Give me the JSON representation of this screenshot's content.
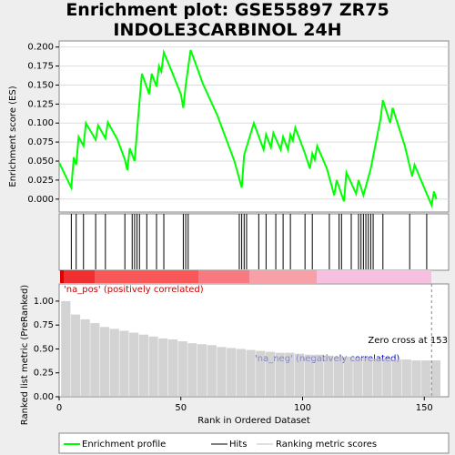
{
  "chart_data": [
    {
      "type": "line",
      "title": "Enrichment plot: GSE55897 ZR75 INDOLE3CARBINOL 24H",
      "ylabel": "Enrichment score (ES)",
      "xlim": [
        0,
        160
      ],
      "ylim": [
        -0.017,
        0.208
      ],
      "yticks": [
        {
          "value": 0,
          "label": "0.000"
        },
        {
          "value": 0.025,
          "label": "0.025"
        },
        {
          "value": 0.05,
          "label": "0.050"
        },
        {
          "value": 0.075,
          "label": "0.075"
        },
        {
          "value": 0.1,
          "label": "0.100"
        },
        {
          "value": 0.125,
          "label": "0.125"
        },
        {
          "value": 0.15,
          "label": "0.150"
        },
        {
          "value": 0.175,
          "label": "0.175"
        },
        {
          "value": 0.2,
          "label": "0.200"
        }
      ],
      "grid": true,
      "series": [
        {
          "name": "Enrichment profile",
          "color": "#00ff00",
          "x": [
            0,
            5,
            6,
            7,
            8,
            10,
            11,
            15,
            16,
            19,
            20,
            24,
            27,
            28,
            29,
            31,
            32,
            34,
            37,
            38,
            40,
            41,
            42,
            43,
            46,
            50,
            51,
            52,
            54,
            57,
            59,
            65,
            72,
            75,
            76,
            80,
            84,
            85,
            87,
            88,
            91,
            92,
            94,
            95,
            96,
            97,
            101,
            103,
            104,
            105,
            106,
            110,
            113,
            114,
            117,
            118,
            122,
            123,
            125,
            128,
            132,
            133,
            136,
            137,
            142,
            145,
            146,
            153,
            154,
            155
          ],
          "values": [
            0.048,
            0.015,
            0.055,
            0.045,
            0.082,
            0.07,
            0.1,
            0.078,
            0.097,
            0.08,
            0.101,
            0.078,
            0.052,
            0.038,
            0.067,
            0.05,
            0.09,
            0.165,
            0.138,
            0.165,
            0.148,
            0.175,
            0.168,
            0.193,
            0.17,
            0.138,
            0.12,
            0.15,
            0.196,
            0.17,
            0.152,
            0.11,
            0.05,
            0.015,
            0.058,
            0.1,
            0.065,
            0.085,
            0.068,
            0.087,
            0.065,
            0.082,
            0.065,
            0.085,
            0.077,
            0.094,
            0.06,
            0.04,
            0.06,
            0.052,
            0.07,
            0.04,
            0.005,
            0.025,
            -0.003,
            0.035,
            0.007,
            0.025,
            0.005,
            0.04,
            0.105,
            0.13,
            0.1,
            0.12,
            0.07,
            0.03,
            0.045,
            -0.008,
            0.01,
            0
          ]
        }
      ]
    },
    {
      "type": "rug",
      "series": [
        {
          "name": "Hits",
          "color": "#000000",
          "x": [
            5,
            7,
            10,
            15,
            19,
            27,
            30,
            31,
            32,
            33,
            36,
            40,
            43,
            51,
            52,
            53,
            74,
            75,
            76,
            77,
            82,
            85,
            89,
            92,
            95,
            101,
            104,
            111,
            115,
            116,
            120,
            123,
            124,
            125,
            126,
            127,
            128,
            129,
            133,
            144,
            151
          ]
        }
      ]
    },
    {
      "type": "bar",
      "xlabel": "Rank in Ordered Dataset",
      "ylabel": "Ranked list metric (PreRanked)",
      "xticks": [
        0,
        50,
        100,
        150
      ],
      "ylim": [
        0,
        1.18
      ],
      "yticks": [
        {
          "value": 0,
          "label": "0.00"
        },
        {
          "value": 0.25,
          "label": "0.25"
        },
        {
          "value": 0.5,
          "label": "0.50"
        },
        {
          "value": 0.75,
          "label": "0.75"
        },
        {
          "value": 1,
          "label": "1.00"
        }
      ],
      "annotations": [
        "'na_pos' (positively correlated)",
        "'na_neg' (negatively correlated)",
        "Zero cross at 153"
      ],
      "series": [
        {
          "name": "Ranking metric scores",
          "color": "#c0c0c0",
          "x": [
            1,
            5,
            9,
            13,
            17,
            21,
            25,
            29,
            33,
            37,
            41,
            45,
            49,
            53,
            57,
            61,
            65,
            69,
            73,
            77,
            81,
            85,
            89,
            93,
            97,
            101,
            105,
            109,
            113,
            117,
            121,
            125,
            129,
            133,
            137,
            141,
            145,
            149,
            153
          ],
          "values": [
            1.0,
            0.86,
            0.81,
            0.77,
            0.73,
            0.71,
            0.69,
            0.67,
            0.65,
            0.63,
            0.61,
            0.6,
            0.58,
            0.56,
            0.55,
            0.54,
            0.52,
            0.51,
            0.5,
            0.49,
            0.48,
            0.47,
            0.46,
            0.46,
            0.45,
            0.44,
            0.44,
            0.43,
            0.42,
            0.42,
            0.41,
            0.41,
            0.4,
            0.4,
            0.39,
            0.39,
            0.38,
            0.38,
            0.38
          ]
        }
      ]
    }
  ]
}
